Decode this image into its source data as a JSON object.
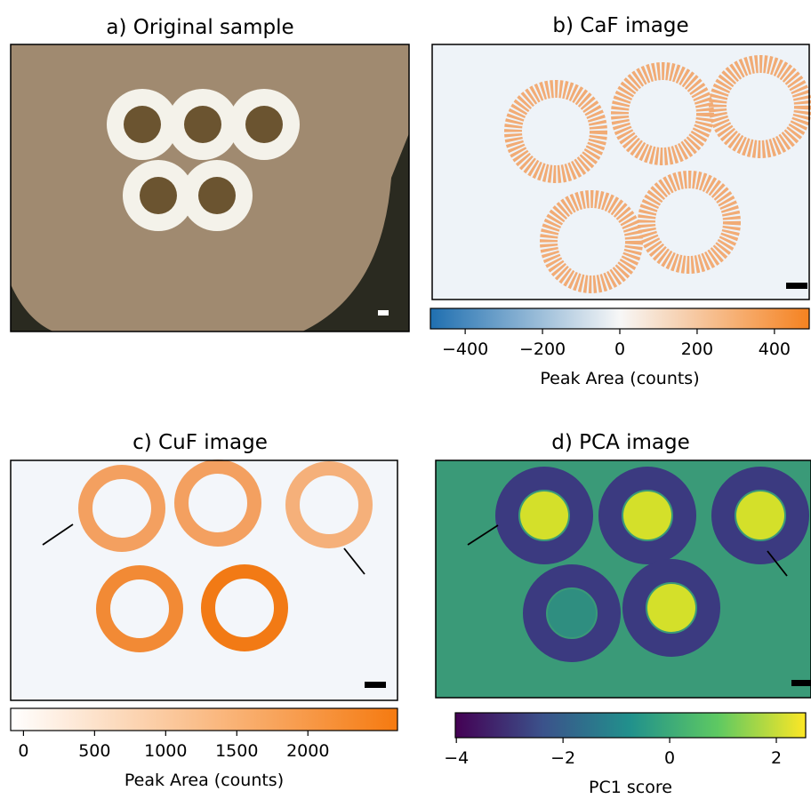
{
  "panels": [
    {
      "title": "a) Original sample"
    },
    {
      "title": "b) CaF image",
      "colorbar": {
        "label": "Peak Area (counts)",
        "lim": [
          -490,
          490
        ],
        "ticks": [
          {
            "value": -400,
            "label": "−400"
          },
          {
            "value": -200,
            "label": "−200"
          },
          0,
          200,
          400
        ]
      }
    },
    {
      "title": "c) CuF image",
      "colorbar": {
        "label": "Peak Area (counts)",
        "lim": [
          -90,
          2630
        ],
        "ticks": [
          0,
          500,
          1000,
          1500,
          2000
        ]
      }
    },
    {
      "title": "d) PCA image",
      "colorbar": {
        "label": "PC1 score",
        "lim": [
          -4.02,
          2.55
        ],
        "ticks": [
          {
            "value": -4,
            "label": "−4"
          },
          {
            "value": -2,
            "label": "−2"
          },
          0,
          2
        ]
      }
    }
  ]
}
